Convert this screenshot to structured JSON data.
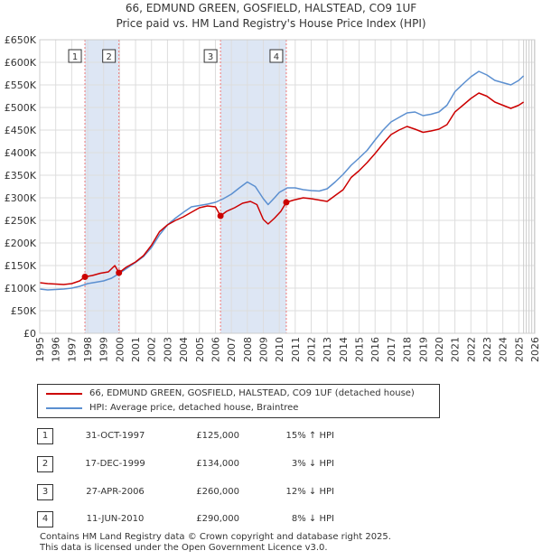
{
  "chart_data": {
    "type": "line",
    "title": "66, EDMUND GREEN, GOSFIELD, HALSTEAD, CO9 1UF",
    "subtitle": "Price paid vs. HM Land Registry's House Price Index (HPI)",
    "xlim": [
      1995,
      2026
    ],
    "ylim": [
      0,
      650000
    ],
    "x_ticks": [
      1995,
      1996,
      1997,
      1998,
      1999,
      2000,
      2001,
      2002,
      2003,
      2004,
      2005,
      2006,
      2007,
      2008,
      2009,
      2010,
      2011,
      2012,
      2013,
      2014,
      2015,
      2016,
      2017,
      2018,
      2019,
      2020,
      2021,
      2022,
      2023,
      2024,
      2025,
      2026
    ],
    "y_ticks": [
      0,
      50000,
      100000,
      150000,
      200000,
      250000,
      300000,
      350000,
      400000,
      450000,
      500000,
      550000,
      600000,
      650000
    ],
    "y_tick_labels": [
      "£0",
      "£50K",
      "£100K",
      "£150K",
      "£200K",
      "£250K",
      "£300K",
      "£350K",
      "£400K",
      "£450K",
      "£500K",
      "£550K",
      "£600K",
      "£650K"
    ],
    "grid": true,
    "series": [
      {
        "name": "66, EDMUND GREEN, GOSFIELD, HALSTEAD, CO9 1UF (detached house)",
        "color": "#cc0000",
        "points": [
          [
            1995.0,
            112000
          ],
          [
            1995.5,
            110000
          ],
          [
            1996.0,
            109000
          ],
          [
            1996.5,
            108000
          ],
          [
            1997.0,
            110000
          ],
          [
            1997.5,
            116000
          ],
          [
            1997.83,
            125000
          ],
          [
            1998.3,
            128000
          ],
          [
            1998.8,
            133000
          ],
          [
            1999.3,
            136000
          ],
          [
            1999.7,
            150000
          ],
          [
            1999.96,
            134000
          ],
          [
            2000.4,
            146000
          ],
          [
            2001.0,
            158000
          ],
          [
            2001.5,
            172000
          ],
          [
            2002.0,
            195000
          ],
          [
            2002.5,
            225000
          ],
          [
            2003.0,
            240000
          ],
          [
            2003.5,
            250000
          ],
          [
            2004.0,
            258000
          ],
          [
            2004.5,
            268000
          ],
          [
            2005.0,
            278000
          ],
          [
            2005.5,
            282000
          ],
          [
            2006.0,
            280000
          ],
          [
            2006.32,
            260000
          ],
          [
            2006.7,
            270000
          ],
          [
            2007.2,
            278000
          ],
          [
            2007.7,
            288000
          ],
          [
            2008.2,
            292000
          ],
          [
            2008.6,
            285000
          ],
          [
            2009.0,
            252000
          ],
          [
            2009.3,
            242000
          ],
          [
            2009.7,
            255000
          ],
          [
            2010.1,
            270000
          ],
          [
            2010.44,
            290000
          ],
          [
            2010.9,
            295000
          ],
          [
            2011.5,
            300000
          ],
          [
            2012.0,
            298000
          ],
          [
            2012.5,
            295000
          ],
          [
            2013.0,
            292000
          ],
          [
            2013.5,
            305000
          ],
          [
            2014.0,
            318000
          ],
          [
            2014.5,
            345000
          ],
          [
            2015.0,
            360000
          ],
          [
            2015.5,
            378000
          ],
          [
            2016.0,
            398000
          ],
          [
            2016.5,
            420000
          ],
          [
            2017.0,
            440000
          ],
          [
            2017.5,
            450000
          ],
          [
            2018.0,
            458000
          ],
          [
            2018.5,
            452000
          ],
          [
            2019.0,
            445000
          ],
          [
            2019.5,
            448000
          ],
          [
            2020.0,
            452000
          ],
          [
            2020.5,
            462000
          ],
          [
            2021.0,
            490000
          ],
          [
            2021.5,
            505000
          ],
          [
            2022.0,
            520000
          ],
          [
            2022.5,
            532000
          ],
          [
            2023.0,
            525000
          ],
          [
            2023.5,
            512000
          ],
          [
            2024.0,
            505000
          ],
          [
            2024.5,
            498000
          ],
          [
            2025.0,
            505000
          ],
          [
            2025.3,
            512000
          ]
        ]
      },
      {
        "name": "HPI: Average price, detached house, Braintree",
        "color": "#5b8fd0",
        "points": [
          [
            1995.0,
            98000
          ],
          [
            1995.5,
            96000
          ],
          [
            1996.0,
            97000
          ],
          [
            1996.5,
            98000
          ],
          [
            1997.0,
            100000
          ],
          [
            1997.5,
            104000
          ],
          [
            1998.0,
            110000
          ],
          [
            1998.5,
            113000
          ],
          [
            1999.0,
            116000
          ],
          [
            1999.5,
            122000
          ],
          [
            2000.0,
            133000
          ],
          [
            2000.5,
            145000
          ],
          [
            2001.0,
            157000
          ],
          [
            2001.5,
            170000
          ],
          [
            2002.0,
            190000
          ],
          [
            2002.5,
            218000
          ],
          [
            2003.0,
            240000
          ],
          [
            2003.5,
            255000
          ],
          [
            2004.0,
            268000
          ],
          [
            2004.5,
            280000
          ],
          [
            2005.0,
            283000
          ],
          [
            2005.5,
            286000
          ],
          [
            2006.0,
            290000
          ],
          [
            2006.5,
            298000
          ],
          [
            2007.0,
            308000
          ],
          [
            2007.5,
            322000
          ],
          [
            2008.0,
            335000
          ],
          [
            2008.5,
            325000
          ],
          [
            2009.0,
            298000
          ],
          [
            2009.3,
            285000
          ],
          [
            2009.7,
            300000
          ],
          [
            2010.0,
            312000
          ],
          [
            2010.5,
            322000
          ],
          [
            2011.0,
            322000
          ],
          [
            2011.5,
            318000
          ],
          [
            2012.0,
            316000
          ],
          [
            2012.5,
            315000
          ],
          [
            2013.0,
            320000
          ],
          [
            2013.5,
            335000
          ],
          [
            2014.0,
            352000
          ],
          [
            2014.5,
            372000
          ],
          [
            2015.0,
            388000
          ],
          [
            2015.5,
            405000
          ],
          [
            2016.0,
            428000
          ],
          [
            2016.5,
            450000
          ],
          [
            2017.0,
            468000
          ],
          [
            2017.5,
            478000
          ],
          [
            2018.0,
            488000
          ],
          [
            2018.5,
            490000
          ],
          [
            2019.0,
            482000
          ],
          [
            2019.5,
            485000
          ],
          [
            2020.0,
            490000
          ],
          [
            2020.5,
            505000
          ],
          [
            2021.0,
            535000
          ],
          [
            2021.5,
            552000
          ],
          [
            2022.0,
            568000
          ],
          [
            2022.5,
            580000
          ],
          [
            2023.0,
            572000
          ],
          [
            2023.5,
            560000
          ],
          [
            2024.0,
            555000
          ],
          [
            2024.5,
            550000
          ],
          [
            2025.0,
            560000
          ],
          [
            2025.3,
            570000
          ]
        ]
      }
    ],
    "transactions": [
      {
        "id": "1",
        "x": 1997.83,
        "date": "31-OCT-1997",
        "price": 125000,
        "price_label": "£125,000",
        "hpi": "15% ↑ HPI"
      },
      {
        "id": "2",
        "x": 1999.96,
        "date": "17-DEC-1999",
        "price": 134000,
        "price_label": "£134,000",
        "hpi": "3% ↓ HPI"
      },
      {
        "id": "3",
        "x": 2006.32,
        "date": "27-APR-2006",
        "price": 260000,
        "price_label": "£260,000",
        "hpi": "12% ↓ HPI"
      },
      {
        "id": "4",
        "x": 2010.44,
        "date": "11-JUN-2010",
        "price": 290000,
        "price_label": "£290,000",
        "hpi": "8% ↓ HPI"
      }
    ],
    "shaded_periods": [
      [
        1997.83,
        1999.96
      ],
      [
        2006.32,
        2010.44
      ]
    ],
    "projection_start": 2025.3,
    "shade_color": "#dde6f4",
    "grid_color": "#dddddd"
  },
  "legend": {
    "property_label": "66, EDMUND GREEN, GOSFIELD, HALSTEAD, CO9 1UF (detached house)",
    "hpi_label": "HPI: Average price, detached house, Braintree"
  },
  "footer": {
    "line1": "Contains HM Land Registry data © Crown copyright and database right 2025.",
    "line2": "This data is licensed under the Open Government Licence v3.0."
  }
}
